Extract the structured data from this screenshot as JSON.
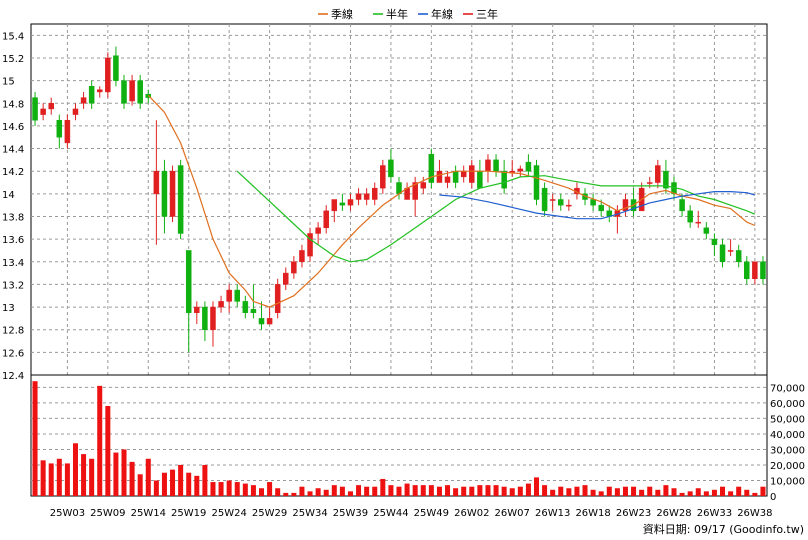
{
  "source_note": "資料日期: 09/17  (Goodinfo.tw)",
  "chart_data": {
    "type": "candlestick",
    "legend": [
      {
        "name": "季線",
        "color": "#e07020"
      },
      {
        "name": "半年",
        "color": "#22c022"
      },
      {
        "name": "年線",
        "color": "#2060d0"
      },
      {
        "name": "三年",
        "color": "#e02020"
      }
    ],
    "colors": {
      "up": "#e02020",
      "down": "#10b010",
      "volume": "#ee1111",
      "grid": "#9a9a9a"
    },
    "price_axis": {
      "ylim": [
        12.4,
        15.5
      ],
      "ticks": [
        12.4,
        12.6,
        12.8,
        13,
        13.2,
        13.4,
        13.6,
        13.8,
        14,
        14.2,
        14.4,
        14.6,
        14.8,
        15,
        15.2,
        15.4
      ],
      "side": "left"
    },
    "volume_axis": {
      "ylim": [
        0,
        78000
      ],
      "ticks": [
        "0",
        "10,000",
        "20,000",
        "30,000",
        "40,000",
        "50,000",
        "60,000",
        "70,000"
      ],
      "tick_values": [
        0,
        10000,
        20000,
        30000,
        40000,
        50000,
        60000,
        70000
      ],
      "side": "right"
    },
    "x_ticks": [
      {
        "i": 4,
        "label": "25W03"
      },
      {
        "i": 9,
        "label": "25W09"
      },
      {
        "i": 14,
        "label": "25W14"
      },
      {
        "i": 19,
        "label": "25W19"
      },
      {
        "i": 24,
        "label": "25W24"
      },
      {
        "i": 29,
        "label": "25W29"
      },
      {
        "i": 34,
        "label": "25W34"
      },
      {
        "i": 39,
        "label": "25W39"
      },
      {
        "i": 44,
        "label": "25W44"
      },
      {
        "i": 49,
        "label": "25W49"
      },
      {
        "i": 54,
        "label": "26W02"
      },
      {
        "i": 59,
        "label": "26W07"
      },
      {
        "i": 64,
        "label": "26W13"
      },
      {
        "i": 69,
        "label": "26W18"
      },
      {
        "i": 74,
        "label": "26W23"
      },
      {
        "i": 79,
        "label": "26W28"
      },
      {
        "i": 84,
        "label": "26W33"
      },
      {
        "i": 89,
        "label": "26W38"
      }
    ],
    "candles": [
      [
        14.85,
        14.65,
        14.9,
        14.6
      ],
      [
        14.7,
        14.75,
        14.8,
        14.65
      ],
      [
        14.75,
        14.8,
        14.85,
        14.7
      ],
      [
        14.65,
        14.5,
        14.7,
        14.4
      ],
      [
        14.45,
        14.65,
        14.7,
        14.4
      ],
      [
        14.7,
        14.75,
        14.8,
        14.65
      ],
      [
        14.8,
        14.85,
        14.9,
        14.75
      ],
      [
        14.95,
        14.8,
        15.0,
        14.75
      ],
      [
        14.9,
        14.92,
        14.95,
        14.85
      ],
      [
        14.9,
        15.2,
        15.25,
        14.85
      ],
      [
        15.22,
        15.0,
        15.3,
        14.95
      ],
      [
        15.0,
        14.8,
        15.05,
        14.75
      ],
      [
        14.82,
        15.0,
        15.05,
        14.78
      ],
      [
        15.0,
        14.8,
        15.05,
        14.75
      ],
      [
        14.88,
        14.85,
        14.92,
        14.8
      ],
      [
        14.0,
        14.2,
        14.65,
        13.55
      ],
      [
        14.2,
        13.8,
        14.3,
        13.65
      ],
      [
        13.8,
        14.2,
        14.25,
        13.75
      ],
      [
        14.25,
        13.65,
        14.3,
        13.6
      ],
      [
        13.5,
        12.95,
        13.5,
        12.6
      ],
      [
        12.95,
        13.0,
        13.05,
        12.85
      ],
      [
        13.0,
        12.8,
        13.05,
        12.7
      ],
      [
        12.8,
        13.0,
        13.05,
        12.65
      ],
      [
        13.0,
        13.05,
        13.1,
        12.95
      ],
      [
        13.05,
        13.15,
        13.2,
        12.95
      ],
      [
        13.15,
        13.05,
        13.2,
        13.0
      ],
      [
        13.05,
        12.95,
        13.1,
        12.9
      ],
      [
        12.98,
        12.95,
        13.2,
        12.9
      ],
      [
        12.9,
        12.85,
        13.05,
        12.8
      ],
      [
        12.85,
        12.9,
        13.0,
        12.85
      ],
      [
        12.95,
        13.2,
        13.25,
        12.9
      ],
      [
        13.2,
        13.3,
        13.35,
        13.15
      ],
      [
        13.3,
        13.4,
        13.45,
        13.25
      ],
      [
        13.4,
        13.5,
        13.55,
        13.35
      ],
      [
        13.45,
        13.65,
        13.7,
        13.4
      ],
      [
        13.65,
        13.7,
        13.75,
        13.55
      ],
      [
        13.7,
        13.85,
        13.9,
        13.65
      ],
      [
        13.85,
        13.95,
        13.95,
        13.75
      ],
      [
        13.92,
        13.9,
        14.0,
        13.85
      ],
      [
        13.9,
        13.95,
        14.0,
        13.85
      ],
      [
        13.95,
        14.0,
        14.05,
        13.9
      ],
      [
        13.95,
        14.0,
        14.05,
        13.9
      ],
      [
        13.95,
        14.05,
        14.1,
        13.9
      ],
      [
        14.05,
        14.25,
        14.3,
        14.0
      ],
      [
        14.3,
        14.15,
        14.4,
        14.1
      ],
      [
        14.1,
        14.0,
        14.15,
        13.95
      ],
      [
        13.95,
        14.05,
        14.1,
        13.95
      ],
      [
        13.95,
        14.1,
        14.15,
        13.8
      ],
      [
        14.05,
        14.1,
        14.15,
        14.0
      ],
      [
        14.35,
        14.1,
        14.4,
        14.05
      ],
      [
        14.1,
        14.2,
        14.3,
        14.1
      ],
      [
        14.1,
        14.15,
        14.2,
        14.05
      ],
      [
        14.2,
        14.1,
        14.25,
        14.05
      ],
      [
        14.15,
        14.2,
        14.25,
        14.1
      ],
      [
        14.1,
        14.25,
        14.3,
        14.05
      ],
      [
        14.2,
        14.05,
        14.3,
        14.05
      ],
      [
        14.2,
        14.3,
        14.35,
        14.1
      ],
      [
        14.3,
        14.2,
        14.35,
        14.15
      ],
      [
        14.2,
        14.05,
        14.3,
        14.0
      ],
      [
        14.2,
        14.2,
        14.3,
        14.15
      ],
      [
        14.2,
        14.22,
        14.25,
        14.15
      ],
      [
        14.28,
        14.2,
        14.35,
        14.15
      ],
      [
        14.25,
        13.95,
        14.3,
        13.9
      ],
      [
        14.05,
        13.85,
        14.1,
        13.8
      ],
      [
        13.95,
        13.95,
        14.0,
        13.85
      ],
      [
        13.95,
        13.9,
        14.0,
        13.85
      ],
      [
        13.9,
        13.9,
        13.95,
        13.85
      ],
      [
        14.0,
        14.05,
        14.1,
        13.95
      ],
      [
        14.0,
        13.95,
        14.05,
        13.9
      ],
      [
        13.95,
        13.9,
        14.0,
        13.85
      ],
      [
        13.9,
        13.85,
        13.95,
        13.8
      ],
      [
        13.85,
        13.8,
        13.9,
        13.75
      ],
      [
        13.8,
        13.85,
        13.9,
        13.65
      ],
      [
        13.85,
        13.95,
        14.0,
        13.8
      ],
      [
        13.95,
        13.85,
        14.05,
        13.8
      ],
      [
        13.85,
        14.05,
        14.1,
        13.85
      ],
      [
        14.1,
        14.1,
        14.15,
        14.05
      ],
      [
        14.1,
        14.25,
        14.3,
        14.05
      ],
      [
        14.2,
        14.05,
        14.3,
        14.0
      ],
      [
        14.1,
        14.0,
        14.15,
        13.95
      ],
      [
        13.95,
        13.85,
        14.0,
        13.8
      ],
      [
        13.85,
        13.75,
        13.9,
        13.7
      ],
      [
        13.75,
        13.75,
        13.85,
        13.7
      ],
      [
        13.7,
        13.65,
        13.75,
        13.6
      ],
      [
        13.6,
        13.55,
        13.65,
        13.45
      ],
      [
        13.55,
        13.4,
        13.6,
        13.35
      ],
      [
        13.5,
        13.5,
        13.6,
        13.45
      ],
      [
        13.5,
        13.4,
        13.55,
        13.35
      ],
      [
        13.4,
        13.25,
        13.45,
        13.2
      ],
      [
        13.25,
        13.4,
        13.4,
        13.2
      ],
      [
        13.4,
        13.25,
        13.45,
        13.2
      ]
    ],
    "volumes": [
      74000,
      23000,
      21000,
      24000,
      21000,
      34000,
      27000,
      24000,
      71000,
      58000,
      28000,
      30000,
      22000,
      14000,
      24000,
      10000,
      15000,
      17000,
      20000,
      15000,
      13000,
      20000,
      9000,
      9000,
      10000,
      9000,
      8000,
      7000,
      5000,
      9000,
      5000,
      2000,
      2000,
      6000,
      3000,
      5000,
      4000,
      7000,
      6000,
      3000,
      7000,
      6000,
      6000,
      11000,
      7000,
      6000,
      8000,
      7000,
      7000,
      7000,
      6000,
      7000,
      5000,
      6000,
      6000,
      7000,
      7000,
      7000,
      6000,
      5000,
      6000,
      8000,
      12000,
      7000,
      4000,
      6000,
      5000,
      6000,
      7000,
      4000,
      3000,
      6000,
      5000,
      6000,
      6000,
      4000,
      6000,
      4000,
      7000,
      5000,
      2000,
      3000,
      5000,
      3000,
      4000,
      6000,
      3000,
      6000,
      4000,
      2000,
      6000
    ],
    "moving_averages": [
      {
        "name": "季線",
        "color": "#e07020",
        "points": [
          [
            14,
            14.87
          ],
          [
            16,
            14.72
          ],
          [
            18,
            14.45
          ],
          [
            20,
            14.05
          ],
          [
            22,
            13.6
          ],
          [
            24,
            13.3
          ],
          [
            26,
            13.15
          ],
          [
            27,
            13.05
          ],
          [
            29,
            13.0
          ],
          [
            32,
            13.1
          ],
          [
            35,
            13.3
          ],
          [
            38,
            13.55
          ],
          [
            40,
            13.7
          ],
          [
            43,
            13.9
          ],
          [
            46,
            14.05
          ],
          [
            49,
            14.15
          ],
          [
            52,
            14.2
          ],
          [
            56,
            14.2
          ],
          [
            60,
            14.18
          ],
          [
            63,
            14.12
          ],
          [
            66,
            14.05
          ],
          [
            68,
            13.98
          ],
          [
            70,
            13.93
          ],
          [
            72,
            13.85
          ],
          [
            74,
            13.9
          ],
          [
            76,
            14.0
          ],
          [
            78,
            14.03
          ],
          [
            80,
            13.98
          ],
          [
            82,
            13.95
          ],
          [
            84,
            13.9
          ],
          [
            86,
            13.87
          ],
          [
            88,
            13.75
          ],
          [
            89,
            13.72
          ]
        ]
      },
      {
        "name": "半年",
        "color": "#22c022",
        "points": [
          [
            25,
            14.2
          ],
          [
            28,
            14.0
          ],
          [
            31,
            13.8
          ],
          [
            34,
            13.6
          ],
          [
            37,
            13.45
          ],
          [
            39,
            13.4
          ],
          [
            41,
            13.42
          ],
          [
            44,
            13.55
          ],
          [
            46,
            13.65
          ],
          [
            49,
            13.8
          ],
          [
            52,
            13.95
          ],
          [
            55,
            14.05
          ],
          [
            58,
            14.1
          ],
          [
            60,
            14.15
          ],
          [
            63,
            14.16
          ],
          [
            66,
            14.12
          ],
          [
            70,
            14.07
          ],
          [
            74,
            14.07
          ],
          [
            78,
            14.07
          ],
          [
            80,
            14.04
          ],
          [
            82,
            13.98
          ],
          [
            84,
            13.95
          ],
          [
            86,
            13.9
          ],
          [
            88,
            13.85
          ],
          [
            89,
            13.82
          ]
        ]
      },
      {
        "name": "年線",
        "color": "#2060d0",
        "points": [
          [
            50,
            13.99
          ],
          [
            53,
            13.97
          ],
          [
            56,
            13.93
          ],
          [
            59,
            13.88
          ],
          [
            62,
            13.83
          ],
          [
            65,
            13.8
          ],
          [
            67,
            13.78
          ],
          [
            70,
            13.78
          ],
          [
            72,
            13.82
          ],
          [
            74,
            13.87
          ],
          [
            76,
            13.92
          ],
          [
            78,
            13.95
          ],
          [
            80,
            13.98
          ],
          [
            82,
            14.0
          ],
          [
            84,
            14.02
          ],
          [
            86,
            14.02
          ],
          [
            88,
            14.01
          ],
          [
            89,
            13.99
          ]
        ]
      }
    ]
  }
}
